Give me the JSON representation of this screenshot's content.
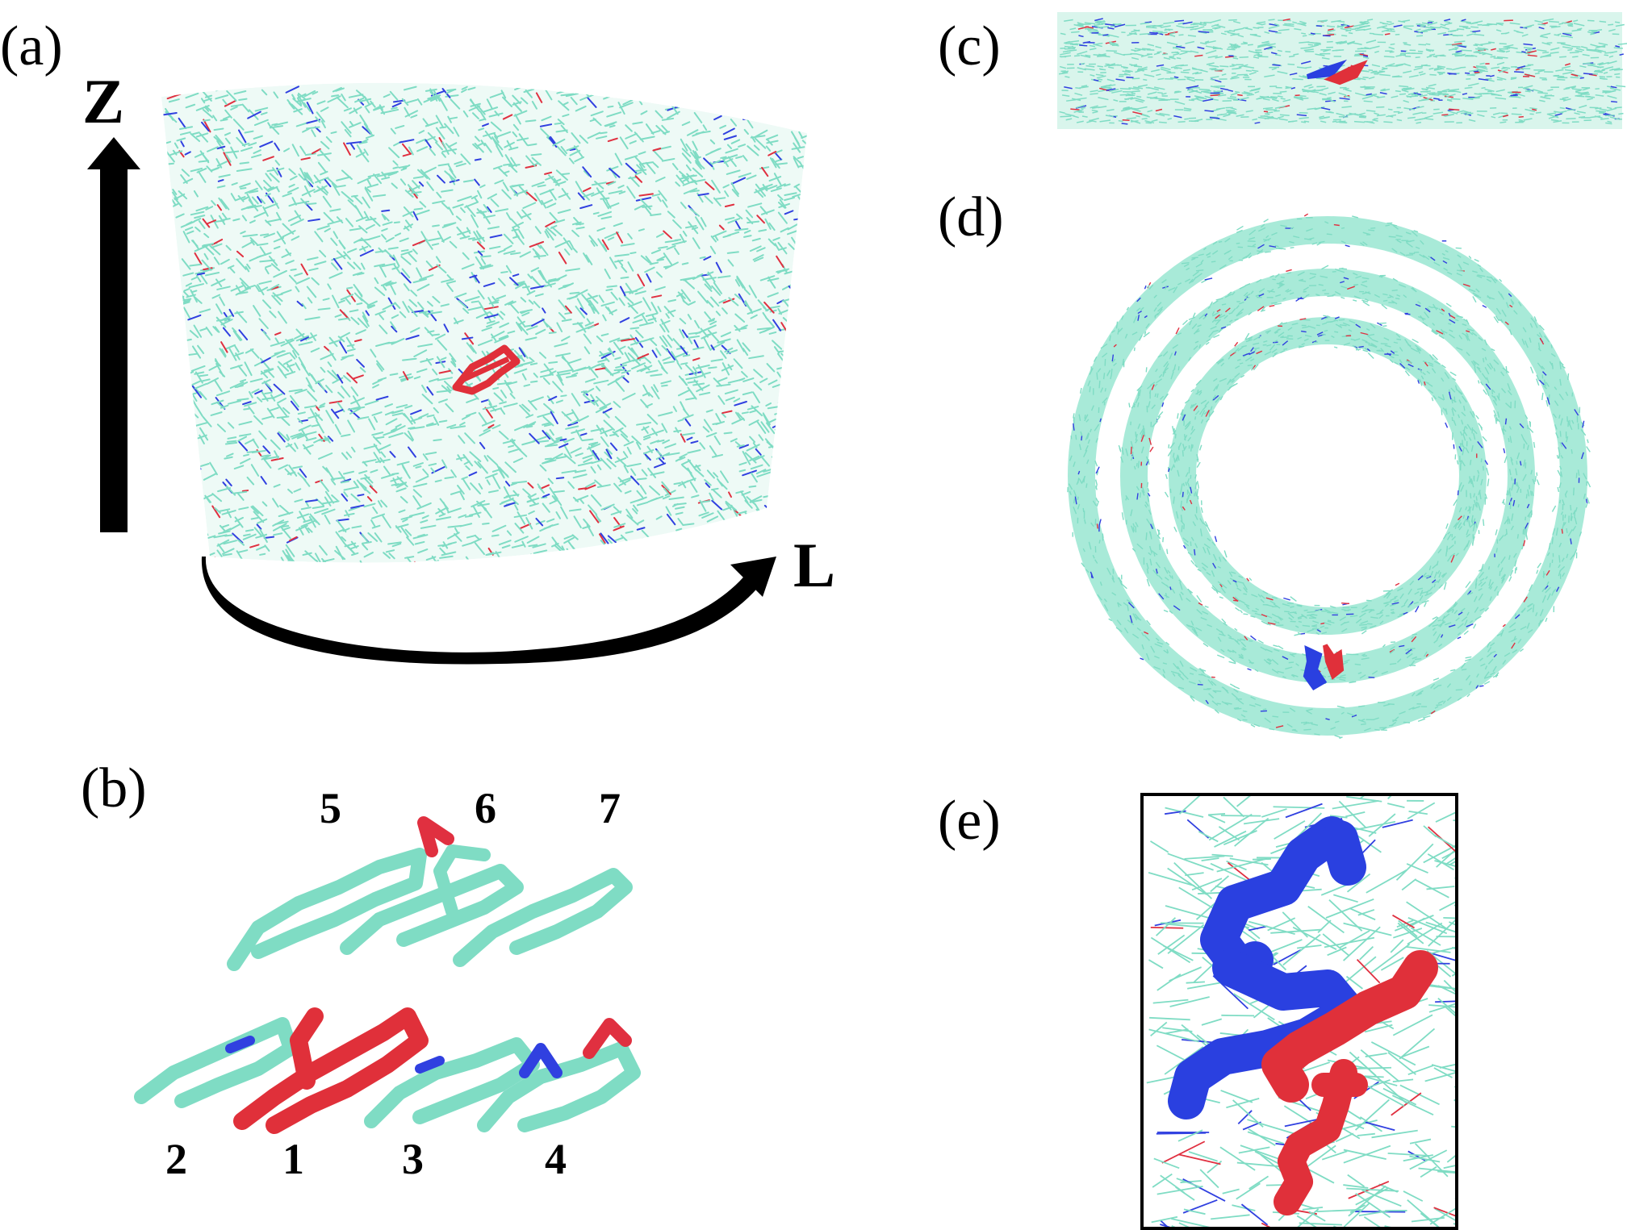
{
  "panels": {
    "a": {
      "label": "(a)",
      "axis_z": "Z",
      "axis_l": "L"
    },
    "b": {
      "label": "(b)",
      "molecule_numbers": [
        "5",
        "6",
        "7",
        "2",
        "1",
        "3",
        "4"
      ]
    },
    "c": {
      "label": "(c)"
    },
    "d": {
      "label": "(d)"
    },
    "e": {
      "label": "(e)"
    }
  },
  "colors": {
    "matrix": "#7fdcc4",
    "nitrogen": "#3040e0",
    "oxygen": "#e03040",
    "highlight_red": "#e0303a",
    "highlight_blue": "#2a40e0",
    "axis": "#000000"
  }
}
